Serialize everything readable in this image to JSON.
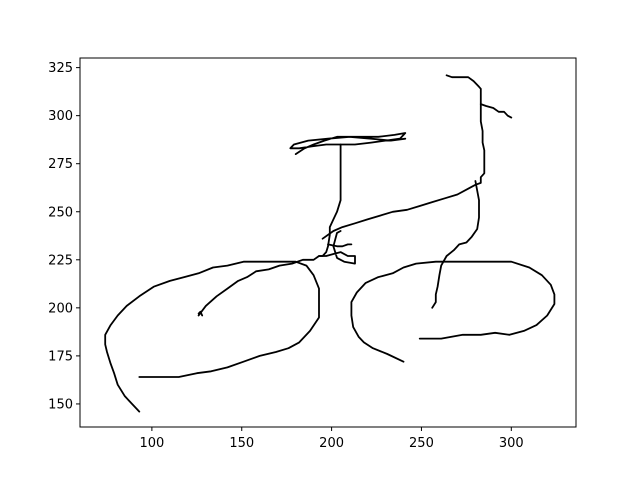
{
  "chart_data": {
    "type": "line",
    "title": "",
    "xlabel": "",
    "ylabel": "",
    "xlim": [
      60,
      336
    ],
    "ylim": [
      138,
      330
    ],
    "xticks": [
      100,
      150,
      200,
      250,
      300
    ],
    "yticks": [
      150,
      175,
      200,
      225,
      250,
      275,
      300,
      325
    ],
    "grid": false,
    "line_color": "#000000",
    "series": [
      {
        "points": [
          [
            93,
            146
          ],
          [
            85,
            154
          ],
          [
            81,
            160
          ],
          [
            79,
            166
          ],
          [
            77,
            171
          ],
          [
            75,
            177
          ],
          [
            74,
            181
          ],
          [
            74,
            186
          ],
          [
            77,
            191
          ],
          [
            81,
            196
          ],
          [
            86,
            201
          ],
          [
            93,
            206
          ],
          [
            101,
            211
          ],
          [
            110,
            214
          ],
          [
            118,
            216
          ],
          [
            126,
            218
          ],
          [
            134,
            221
          ],
          [
            142,
            222
          ],
          [
            151,
            224
          ],
          [
            162,
            224
          ],
          [
            173,
            224
          ],
          [
            180,
            224
          ],
          [
            186,
            222
          ],
          [
            190,
            217
          ],
          [
            193,
            210
          ],
          [
            193,
            201
          ],
          [
            193,
            195
          ],
          [
            188,
            188
          ],
          [
            182,
            182
          ],
          [
            176,
            179
          ],
          [
            169,
            177
          ],
          [
            160,
            175
          ],
          [
            151,
            172
          ],
          [
            142,
            169
          ],
          [
            133,
            167
          ],
          [
            125,
            166
          ],
          [
            115,
            164
          ],
          [
            104,
            164
          ],
          [
            93,
            164
          ]
        ]
      },
      {
        "points": [
          [
            240,
            172
          ],
          [
            231,
            176
          ],
          [
            223,
            179
          ],
          [
            218,
            182
          ],
          [
            215,
            185
          ],
          [
            212,
            190
          ],
          [
            211,
            196
          ],
          [
            211,
            203
          ],
          [
            214,
            208
          ],
          [
            219,
            213
          ],
          [
            226,
            216
          ],
          [
            234,
            218
          ],
          [
            240,
            221
          ],
          [
            247,
            223
          ],
          [
            258,
            224
          ],
          [
            270,
            224
          ],
          [
            283,
            224
          ],
          [
            300,
            224
          ],
          [
            310,
            221
          ],
          [
            317,
            217
          ],
          [
            322,
            212
          ],
          [
            324,
            207
          ],
          [
            324,
            202
          ],
          [
            320,
            196
          ],
          [
            314,
            191
          ],
          [
            307,
            188
          ],
          [
            299,
            186
          ],
          [
            291,
            187
          ],
          [
            283,
            186
          ],
          [
            273,
            186
          ],
          [
            261,
            184
          ],
          [
            249,
            184
          ]
        ]
      },
      {
        "points": [
          [
            126,
            196
          ],
          [
            130,
            201
          ],
          [
            136,
            206
          ],
          [
            142,
            210
          ],
          [
            148,
            214
          ],
          [
            153,
            216
          ],
          [
            158,
            219
          ],
          [
            165,
            220
          ],
          [
            171,
            222
          ],
          [
            178,
            223
          ],
          [
            184,
            225
          ],
          [
            190,
            225
          ],
          [
            193,
            227
          ],
          [
            197,
            227
          ],
          [
            201,
            228
          ],
          [
            205,
            229
          ],
          [
            209,
            227
          ],
          [
            213,
            227
          ],
          [
            213,
            223
          ],
          [
            207,
            224
          ],
          [
            203,
            226
          ],
          [
            201,
            232
          ],
          [
            203,
            239
          ],
          [
            205,
            240
          ]
        ]
      },
      {
        "points": [
          [
            195,
            236
          ],
          [
            201,
            240
          ],
          [
            206,
            242
          ],
          [
            213,
            244
          ],
          [
            220,
            246
          ],
          [
            227,
            248
          ],
          [
            234,
            250
          ],
          [
            242,
            251
          ],
          [
            249,
            253
          ],
          [
            256,
            255
          ],
          [
            263,
            257
          ],
          [
            270,
            259
          ],
          [
            276,
            262
          ],
          [
            280,
            264
          ],
          [
            283,
            265
          ],
          [
            283,
            268
          ],
          [
            285,
            270
          ],
          [
            285,
            275
          ],
          [
            285,
            282
          ],
          [
            284,
            286
          ],
          [
            284,
            292
          ],
          [
            283,
            297
          ],
          [
            283,
            301
          ],
          [
            283,
            306
          ],
          [
            283,
            310
          ],
          [
            283,
            314
          ],
          [
            282,
            315
          ],
          [
            279,
            318
          ],
          [
            276,
            320
          ],
          [
            274,
            320
          ],
          [
            271,
            320
          ],
          [
            267,
            320
          ],
          [
            264,
            321
          ]
        ]
      },
      {
        "points": [
          [
            280,
            266
          ],
          [
            282,
            256
          ],
          [
            282,
            247
          ],
          [
            281,
            241
          ],
          [
            278,
            237
          ],
          [
            275,
            234
          ],
          [
            271,
            233
          ],
          [
            268,
            230
          ],
          [
            264,
            227
          ],
          [
            261,
            222
          ],
          [
            260,
            217
          ],
          [
            259,
            211
          ],
          [
            258,
            207
          ],
          [
            258,
            203
          ],
          [
            256,
            200
          ]
        ]
      },
      {
        "points": [
          [
            180,
            280
          ],
          [
            185,
            283
          ],
          [
            190,
            285
          ],
          [
            196,
            287
          ],
          [
            203,
            289
          ],
          [
            210,
            289
          ],
          [
            218,
            289
          ],
          [
            226,
            289
          ],
          [
            235,
            290
          ],
          [
            241,
            291
          ],
          [
            238,
            288
          ],
          [
            230,
            287
          ],
          [
            222,
            286
          ],
          [
            213,
            285
          ],
          [
            205,
            285
          ],
          [
            197,
            285
          ],
          [
            189,
            284
          ],
          [
            182,
            283
          ],
          [
            177,
            283
          ],
          [
            179,
            285
          ],
          [
            187,
            287
          ],
          [
            198,
            288
          ],
          [
            210,
            289
          ],
          [
            222,
            288
          ],
          [
            233,
            287
          ],
          [
            241,
            288
          ]
        ]
      },
      {
        "points": [
          [
            283,
            306
          ],
          [
            286,
            305
          ],
          [
            290,
            304
          ],
          [
            293,
            302
          ],
          [
            296,
            302
          ],
          [
            298,
            300
          ],
          [
            300,
            299
          ]
        ]
      },
      {
        "points": [
          [
            205,
            285
          ],
          [
            205,
            277
          ],
          [
            205,
            270
          ],
          [
            205,
            262
          ],
          [
            205,
            256
          ],
          [
            203,
            250
          ],
          [
            201,
            246
          ],
          [
            199,
            242
          ],
          [
            199,
            238
          ],
          [
            198,
            232
          ],
          [
            197,
            229
          ],
          [
            195,
            227
          ],
          [
            193,
            227
          ]
        ]
      },
      {
        "points": [
          [
            198,
            233
          ],
          [
            203,
            232
          ],
          [
            206,
            232
          ],
          [
            209,
            233
          ],
          [
            211,
            233
          ]
        ]
      },
      {
        "points": [
          [
            128,
            196
          ],
          [
            127,
            198
          ],
          [
            126,
            197
          ]
        ]
      }
    ]
  }
}
